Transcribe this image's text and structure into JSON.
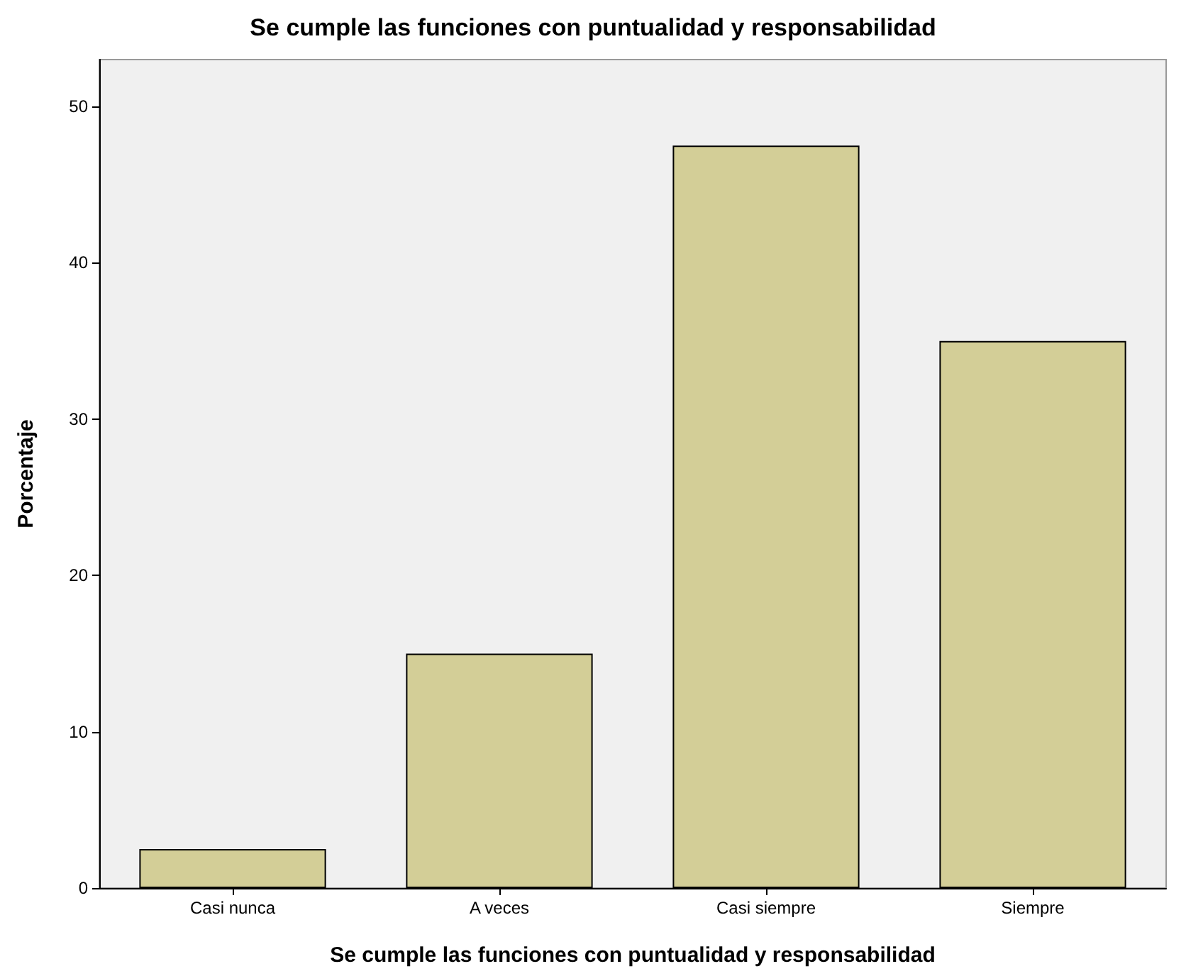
{
  "chart_data": {
    "type": "bar",
    "title": "Se cumple las funciones con puntualidad y responsabilidad",
    "xlabel": "Se cumple las funciones con puntualidad y responsabilidad",
    "ylabel": "Porcentaje",
    "categories": [
      "Casi nunca",
      "A veces",
      "Casi siempre",
      "Siempre"
    ],
    "values": [
      2.5,
      15,
      47.5,
      35
    ],
    "color": "#d3ce97",
    "ylim": [
      0,
      53
    ],
    "yticks": [
      0,
      10,
      20,
      30,
      40,
      50
    ],
    "grid": false
  }
}
